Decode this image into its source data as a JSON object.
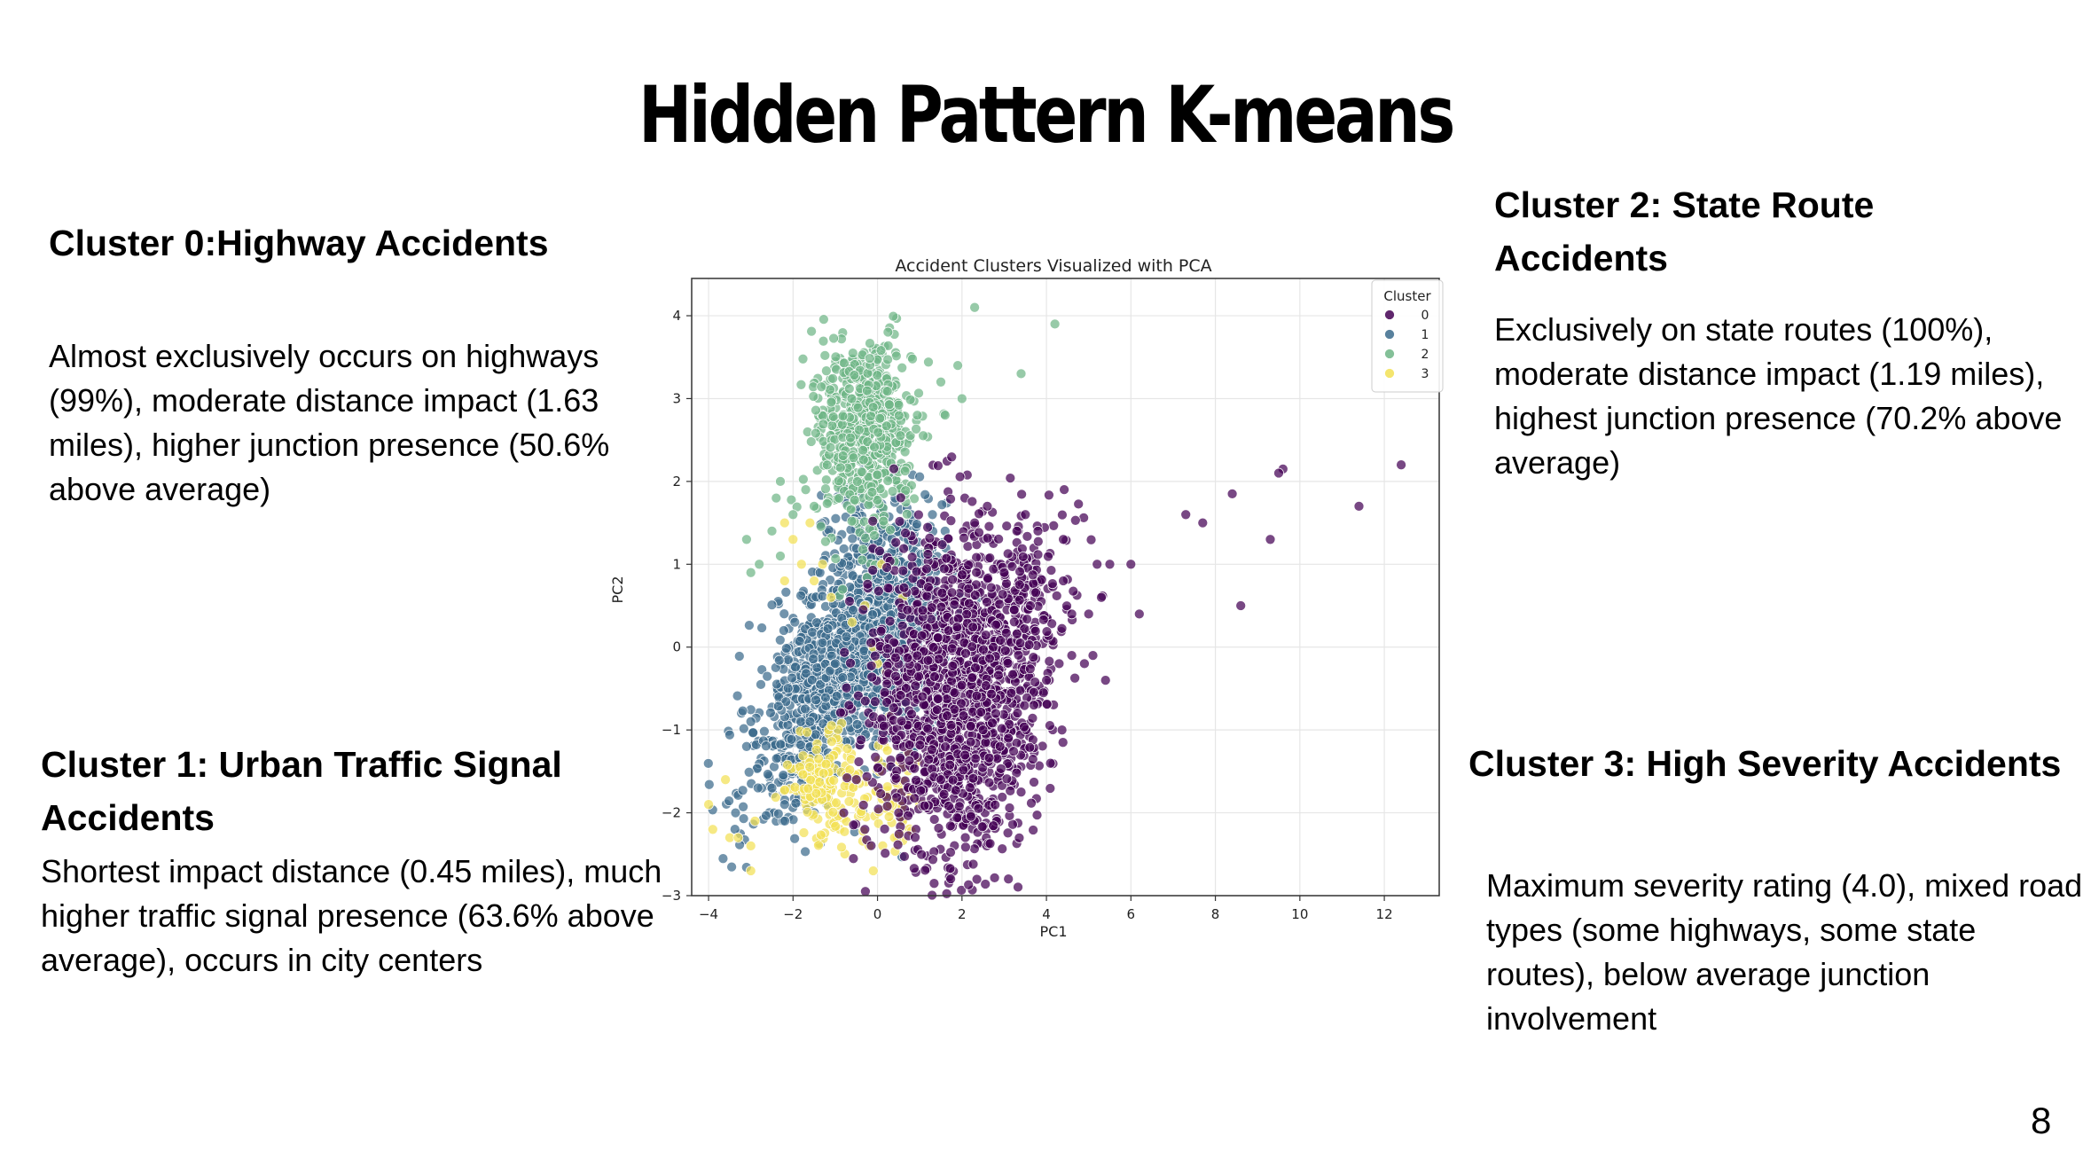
{
  "slide": {
    "title": "Hidden Pattern K-means",
    "page_number": "8"
  },
  "clusters": [
    {
      "heading": "Cluster 0:Highway Accidents",
      "body": "Almost exclusively occurs on highways (99%), moderate distance impact (1.63 miles), higher junction presence (50.6% above average)"
    },
    {
      "heading": "Cluster 1: Urban Traffic Signal Accidents",
      "body": "Shortest impact distance (0.45 miles), much higher traffic signal presence (63.6% above average), occurs in city centers"
    },
    {
      "heading": "Cluster 2: State Route Accidents",
      "body": "Exclusively on state routes (100%), moderate distance impact (1.19 miles), highest junction presence (70.2% above average)"
    },
    {
      "heading": "Cluster 3: High Severity Accidents",
      "body": "Maximum severity rating (4.0), mixed road types (some highways, some state routes), below average junction involvement"
    }
  ],
  "chart_data": {
    "type": "scatter",
    "title": "Accident Clusters Visualized with PCA",
    "xlabel": "PC1",
    "ylabel": "PC2",
    "xlim": [
      -4.4,
      13.3
    ],
    "ylim": [
      -3.0,
      4.45
    ],
    "x_ticks": [
      -4,
      -2,
      0,
      2,
      4,
      6,
      8,
      10,
      12
    ],
    "y_ticks": [
      -3,
      -2,
      -1,
      0,
      1,
      2,
      3,
      4
    ],
    "x_tick_labels": [
      "−4",
      "−2",
      "0",
      "2",
      "4",
      "6",
      "8",
      "10",
      "12"
    ],
    "y_tick_labels": [
      "−3",
      "−2",
      "−1",
      "0",
      "1",
      "2",
      "3",
      "4"
    ],
    "grid": true,
    "legend": {
      "title": "Cluster",
      "position": "top-right"
    },
    "series": [
      {
        "name": "0",
        "color": "#440154",
        "points": [
          [
            12.4,
            2.2
          ],
          [
            11.4,
            1.7
          ],
          [
            9.6,
            2.15
          ],
          [
            9.5,
            2.1
          ],
          [
            9.3,
            1.3
          ],
          [
            8.6,
            0.5
          ],
          [
            8.4,
            1.85
          ],
          [
            7.7,
            1.5
          ],
          [
            7.3,
            1.6
          ],
          [
            6.2,
            0.4
          ],
          [
            6.0,
            1.0
          ],
          [
            5.5,
            1.0
          ],
          [
            5.3,
            0.6
          ],
          [
            5.2,
            1.0
          ],
          [
            5.0,
            0.4
          ],
          [
            4.6,
            0.4
          ],
          [
            4.4,
            0.8
          ],
          [
            4.4,
            1.3
          ],
          [
            5.1,
            -0.1
          ],
          [
            5.4,
            -0.4
          ],
          [
            4.9,
            -0.2
          ],
          [
            4.6,
            -0.1
          ],
          [
            4.3,
            -0.2
          ],
          [
            4.0,
            -0.4
          ],
          [
            3.8,
            1.4
          ],
          [
            3.5,
            1.6
          ],
          [
            3.3,
            1.4
          ],
          [
            2.6,
            1.7
          ],
          [
            2.3,
            1.5
          ],
          [
            3.0,
            0.9
          ],
          [
            3.1,
            -1.1
          ],
          [
            2.8,
            -0.8
          ],
          [
            2.5,
            -1.0
          ],
          [
            2.9,
            -1.2
          ],
          [
            -0.3,
            -2.2
          ],
          [
            -0.8,
            -2.0
          ],
          [
            -0.5,
            -1.6
          ],
          [
            0.5,
            -2.0
          ],
          [
            1.5,
            -1.6
          ]
        ],
        "cloud": [
          {
            "cx": 1.8,
            "cy": -0.6,
            "sx": 0.95,
            "sy": 0.95,
            "angle": 50,
            "count": 1500
          },
          {
            "cx": 3.2,
            "cy": 0.4,
            "sx": 0.8,
            "sy": 0.5,
            "angle": 35,
            "count": 220
          }
        ]
      },
      {
        "name": "1",
        "color": "#3b6b8c",
        "points": [
          [
            -3.1,
            -1.2
          ],
          [
            -3.0,
            -0.9
          ],
          [
            -2.5,
            -1.7
          ],
          [
            -2.2,
            -1.9
          ],
          [
            -1.0,
            -0.2
          ],
          [
            1.3,
            1.6
          ],
          [
            1.6,
            1.4
          ],
          [
            0.8,
            1.6
          ],
          [
            -1.6,
            -0.9
          ]
        ],
        "cloud": [
          {
            "cx": -1.4,
            "cy": -0.5,
            "sx": 1.05,
            "sy": 0.55,
            "angle": 42,
            "count": 700
          },
          {
            "cx": 0.4,
            "cy": 0.6,
            "sx": 0.55,
            "sy": 0.75,
            "angle": 60,
            "count": 600
          },
          {
            "cx": -0.4,
            "cy": -0.3,
            "sx": 0.45,
            "sy": 0.6,
            "angle": 70,
            "count": 300
          }
        ]
      },
      {
        "name": "2",
        "color": "#6fb586",
        "points": [
          [
            2.3,
            4.1
          ],
          [
            4.2,
            3.9
          ],
          [
            3.4,
            3.3
          ],
          [
            1.9,
            3.4
          ],
          [
            2.0,
            3.0
          ],
          [
            1.5,
            3.2
          ],
          [
            1.6,
            2.8
          ],
          [
            -2.3,
            2.0
          ],
          [
            -3.1,
            1.3
          ],
          [
            -3.0,
            0.9
          ],
          [
            -2.8,
            1.0
          ],
          [
            -2.5,
            1.4
          ],
          [
            -2.3,
            1.1
          ],
          [
            -2.0,
            1.6
          ],
          [
            -1.7,
            1.9
          ],
          [
            -2.4,
            1.8
          ],
          [
            -1.5,
            1.7
          ]
        ],
        "cloud": [
          {
            "cx": -0.3,
            "cy": 2.55,
            "sx": 0.6,
            "sy": 0.62,
            "angle": 55,
            "count": 600
          }
        ]
      },
      {
        "name": "3",
        "color": "#f2e155",
        "points": [
          [
            -4.0,
            -1.9
          ],
          [
            -3.9,
            -2.2
          ],
          [
            -3.6,
            -1.6
          ],
          [
            -3.5,
            -2.3
          ],
          [
            -3.3,
            -2.3
          ],
          [
            -3.0,
            -2.7
          ],
          [
            -3.0,
            -2.4
          ],
          [
            -2.9,
            -2.1
          ],
          [
            -2.2,
            1.5
          ],
          [
            -2.0,
            1.3
          ],
          [
            -2.2,
            0.8
          ],
          [
            -1.8,
            1.0
          ],
          [
            -1.5,
            0.8
          ],
          [
            -1.3,
            1.0
          ],
          [
            -1.6,
            1.5
          ],
          [
            -1.1,
            0.6
          ],
          [
            -0.6,
            0.3
          ],
          [
            -0.3,
            0.5
          ],
          [
            0.1,
            1.0
          ],
          [
            0.6,
            0.6
          ],
          [
            0.0,
            -0.2
          ],
          [
            0.2,
            -0.3
          ],
          [
            -0.1,
            0.0
          ],
          [
            -0.1,
            -2.7
          ],
          [
            0.4,
            -2.3
          ],
          [
            0.6,
            -2.1
          ],
          [
            0.8,
            -1.8
          ],
          [
            -0.2,
            -2.4
          ],
          [
            0.3,
            -1.9
          ]
        ],
        "cloud": [
          {
            "cx": -1.2,
            "cy": -1.6,
            "sx": 0.32,
            "sy": 0.45,
            "angle": 80,
            "count": 160
          },
          {
            "cx": 0.3,
            "cy": -1.9,
            "sx": 0.35,
            "sy": 0.3,
            "angle": 40,
            "count": 55
          }
        ]
      }
    ]
  }
}
